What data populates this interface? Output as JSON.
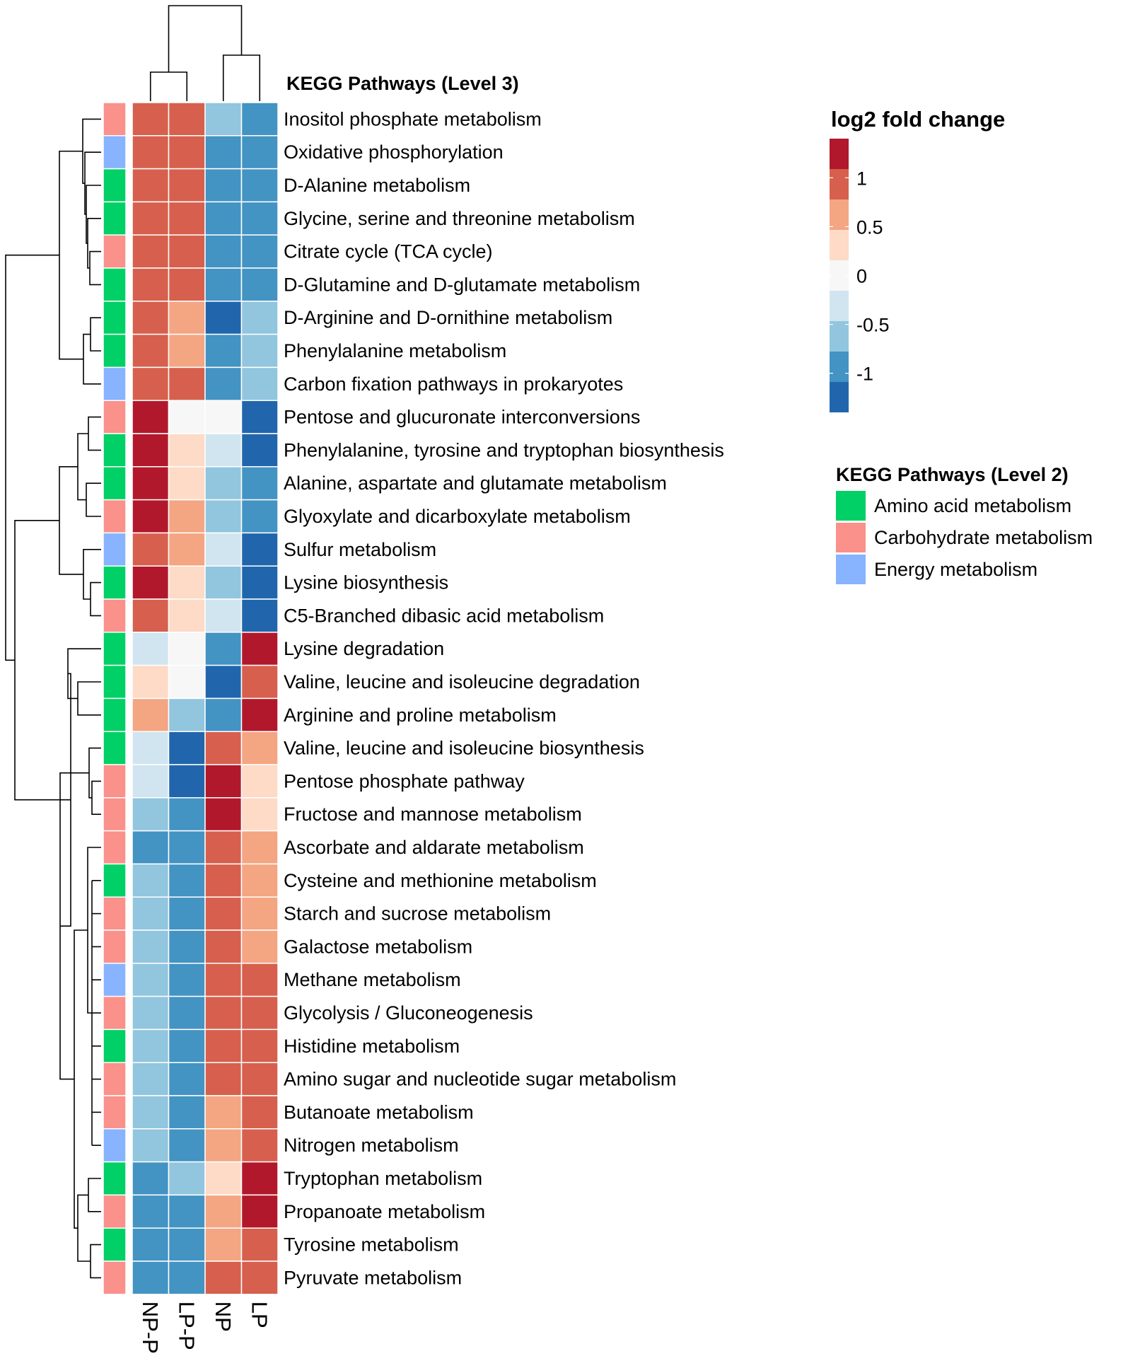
{
  "chart_data": {
    "type": "heatmap",
    "title": "KEGG Pathways (Level 3)",
    "columns": [
      "NP-P",
      "LP-P",
      "NP",
      "LP"
    ],
    "rows": [
      {
        "label": "Inositol phosphate metabolism",
        "group": "Carbohydrate metabolism",
        "values": [
          1.0,
          1.0,
          -0.6,
          -0.9
        ]
      },
      {
        "label": "Oxidative phosphorylation",
        "group": "Energy metabolism",
        "values": [
          1.0,
          1.0,
          -0.9,
          -0.9
        ]
      },
      {
        "label": "D-Alanine metabolism",
        "group": "Amino acid metabolism",
        "values": [
          1.0,
          1.0,
          -0.9,
          -0.9
        ]
      },
      {
        "label": "Glycine, serine and threonine metabolism",
        "group": "Amino acid metabolism",
        "values": [
          1.0,
          1.0,
          -0.9,
          -0.9
        ]
      },
      {
        "label": "Citrate cycle (TCA cycle)",
        "group": "Carbohydrate metabolism",
        "values": [
          1.0,
          1.0,
          -0.9,
          -0.9
        ]
      },
      {
        "label": "D-Glutamine and D-glutamate metabolism",
        "group": "Amino acid metabolism",
        "values": [
          1.0,
          1.0,
          -0.9,
          -0.9
        ]
      },
      {
        "label": "D-Arginine and D-ornithine metabolism",
        "group": "Amino acid metabolism",
        "values": [
          1.0,
          0.6,
          -1.3,
          -0.6
        ]
      },
      {
        "label": "Phenylalanine metabolism",
        "group": "Amino acid metabolism",
        "values": [
          1.0,
          0.6,
          -0.9,
          -0.6
        ]
      },
      {
        "label": "Carbon fixation pathways in prokaryotes",
        "group": "Energy metabolism",
        "values": [
          1.0,
          1.0,
          -0.9,
          -0.6
        ]
      },
      {
        "label": "Pentose and glucuronate interconversions",
        "group": "Carbohydrate metabolism",
        "values": [
          1.4,
          0.0,
          0.0,
          -1.3
        ]
      },
      {
        "label": "Phenylalanine, tyrosine and tryptophan biosynthesis",
        "group": "Amino acid metabolism",
        "values": [
          1.4,
          0.3,
          -0.3,
          -1.3
        ]
      },
      {
        "label": "Alanine, aspartate and glutamate metabolism",
        "group": "Amino acid metabolism",
        "values": [
          1.4,
          0.3,
          -0.6,
          -0.9
        ]
      },
      {
        "label": "Glyoxylate and dicarboxylate metabolism",
        "group": "Carbohydrate metabolism",
        "values": [
          1.4,
          0.6,
          -0.6,
          -0.9
        ]
      },
      {
        "label": "Sulfur metabolism",
        "group": "Energy metabolism",
        "values": [
          1.0,
          0.6,
          -0.3,
          -1.3
        ]
      },
      {
        "label": "Lysine biosynthesis",
        "group": "Amino acid metabolism",
        "values": [
          1.4,
          0.3,
          -0.6,
          -1.3
        ]
      },
      {
        "label": "C5-Branched dibasic acid metabolism",
        "group": "Carbohydrate metabolism",
        "values": [
          1.0,
          0.3,
          -0.3,
          -1.3
        ]
      },
      {
        "label": "Lysine degradation",
        "group": "Amino acid metabolism",
        "values": [
          -0.3,
          0.0,
          -0.9,
          1.4
        ]
      },
      {
        "label": "Valine, leucine and isoleucine degradation",
        "group": "Amino acid metabolism",
        "values": [
          0.3,
          0.0,
          -1.3,
          1.0
        ]
      },
      {
        "label": "Arginine and proline metabolism",
        "group": "Amino acid metabolism",
        "values": [
          0.6,
          -0.6,
          -0.9,
          1.4
        ]
      },
      {
        "label": "Valine, leucine and isoleucine biosynthesis",
        "group": "Amino acid metabolism",
        "values": [
          -0.3,
          -1.3,
          1.0,
          0.6
        ]
      },
      {
        "label": "Pentose phosphate pathway",
        "group": "Carbohydrate metabolism",
        "values": [
          -0.3,
          -1.3,
          1.4,
          0.3
        ]
      },
      {
        "label": "Fructose and mannose metabolism",
        "group": "Carbohydrate metabolism",
        "values": [
          -0.6,
          -0.9,
          1.4,
          0.3
        ]
      },
      {
        "label": "Ascorbate and aldarate metabolism",
        "group": "Carbohydrate metabolism",
        "values": [
          -0.9,
          -0.9,
          1.0,
          0.6
        ]
      },
      {
        "label": "Cysteine and methionine metabolism",
        "group": "Amino acid metabolism",
        "values": [
          -0.6,
          -0.9,
          1.0,
          0.6
        ]
      },
      {
        "label": "Starch and sucrose metabolism",
        "group": "Carbohydrate metabolism",
        "values": [
          -0.6,
          -0.9,
          1.0,
          0.6
        ]
      },
      {
        "label": "Galactose metabolism",
        "group": "Carbohydrate metabolism",
        "values": [
          -0.6,
          -0.9,
          1.0,
          0.6
        ]
      },
      {
        "label": "Methane metabolism",
        "group": "Energy metabolism",
        "values": [
          -0.6,
          -0.9,
          1.0,
          1.0
        ]
      },
      {
        "label": "Glycolysis / Gluconeogenesis",
        "group": "Carbohydrate metabolism",
        "values": [
          -0.6,
          -0.9,
          1.0,
          1.0
        ]
      },
      {
        "label": "Histidine metabolism",
        "group": "Amino acid metabolism",
        "values": [
          -0.6,
          -0.9,
          1.0,
          1.0
        ]
      },
      {
        "label": "Amino sugar and nucleotide sugar metabolism",
        "group": "Carbohydrate metabolism",
        "values": [
          -0.6,
          -0.9,
          1.0,
          1.0
        ]
      },
      {
        "label": "Butanoate metabolism",
        "group": "Carbohydrate metabolism",
        "values": [
          -0.6,
          -0.9,
          0.6,
          1.0
        ]
      },
      {
        "label": "Nitrogen metabolism",
        "group": "Energy metabolism",
        "values": [
          -0.6,
          -0.9,
          0.6,
          1.0
        ]
      },
      {
        "label": "Tryptophan metabolism",
        "group": "Amino acid metabolism",
        "values": [
          -0.9,
          -0.6,
          0.3,
          1.4
        ]
      },
      {
        "label": "Propanoate metabolism",
        "group": "Carbohydrate metabolism",
        "values": [
          -0.9,
          -0.9,
          0.6,
          1.4
        ]
      },
      {
        "label": "Tyrosine metabolism",
        "group": "Amino acid metabolism",
        "values": [
          -0.9,
          -0.9,
          0.6,
          1.0
        ]
      },
      {
        "label": "Pyruvate metabolism",
        "group": "Carbohydrate metabolism",
        "values": [
          -0.9,
          -0.9,
          1.0,
          1.0
        ]
      }
    ],
    "color_scale": {
      "title": "log2 fold change",
      "ticks": [
        {
          "value": 1,
          "label": "1"
        },
        {
          "value": 0.5,
          "label": "0.5"
        },
        {
          "value": 0,
          "label": "0"
        },
        {
          "value": -0.5,
          "label": "-0.5"
        },
        {
          "value": -1,
          "label": "-1"
        }
      ],
      "bins": [
        {
          "min": 1.25,
          "color": "#b2182b"
        },
        {
          "min": 0.75,
          "color": "#d6604d"
        },
        {
          "min": 0.45,
          "color": "#f4a582"
        },
        {
          "min": 0.15,
          "color": "#fddbc7"
        },
        {
          "min": -0.15,
          "color": "#f7f7f7"
        },
        {
          "min": -0.45,
          "color": "#d1e5f0"
        },
        {
          "min": -0.75,
          "color": "#92c5de"
        },
        {
          "min": -1.1,
          "color": "#4393c3"
        },
        {
          "min": -99,
          "color": "#2166ac"
        }
      ]
    },
    "group_legend": {
      "title": "KEGG Pathways (Level 2)",
      "items": [
        {
          "label": "Amino acid metabolism",
          "color": "#00d065"
        },
        {
          "label": "Carbohydrate metabolism",
          "color": "#fa918a"
        },
        {
          "label": "Energy metabolism",
          "color": "#87b3ff"
        }
      ]
    },
    "column_dendrogram": "((NP-P,LP-P),(NP,LP))",
    "row_dendrogram": "(((Inositol phosphate metabolism,(Oxidative phosphorylation,(D-Alanine metabolism,(Glycine serine threonine,(Citrate cycle,D-Glutamine))),((D-Arginine,Phenylalanine metabolism),Carbon fixation)),((Pentose glucuronate,Phe Tyr Trp biosynthesis),(Alanine aspartate glutamate,Glyoxylate)),(Sulfur,(Lysine biosynthesis,C5-Branched)))),((Lysine degradation,(Valine degradation,Arginine proline)),((Valine biosynthesis,(Pentose phosphate,Fructose mannose)),((Ascorbate,(Cysteine,Starch,Galactose,Methane,Glycolysis,Histidine,Amino sugar,Butanoate,Nitrogen)),((Tryptophan,Propanoate),(Tyrosine,Pyruvate))))))"
  }
}
